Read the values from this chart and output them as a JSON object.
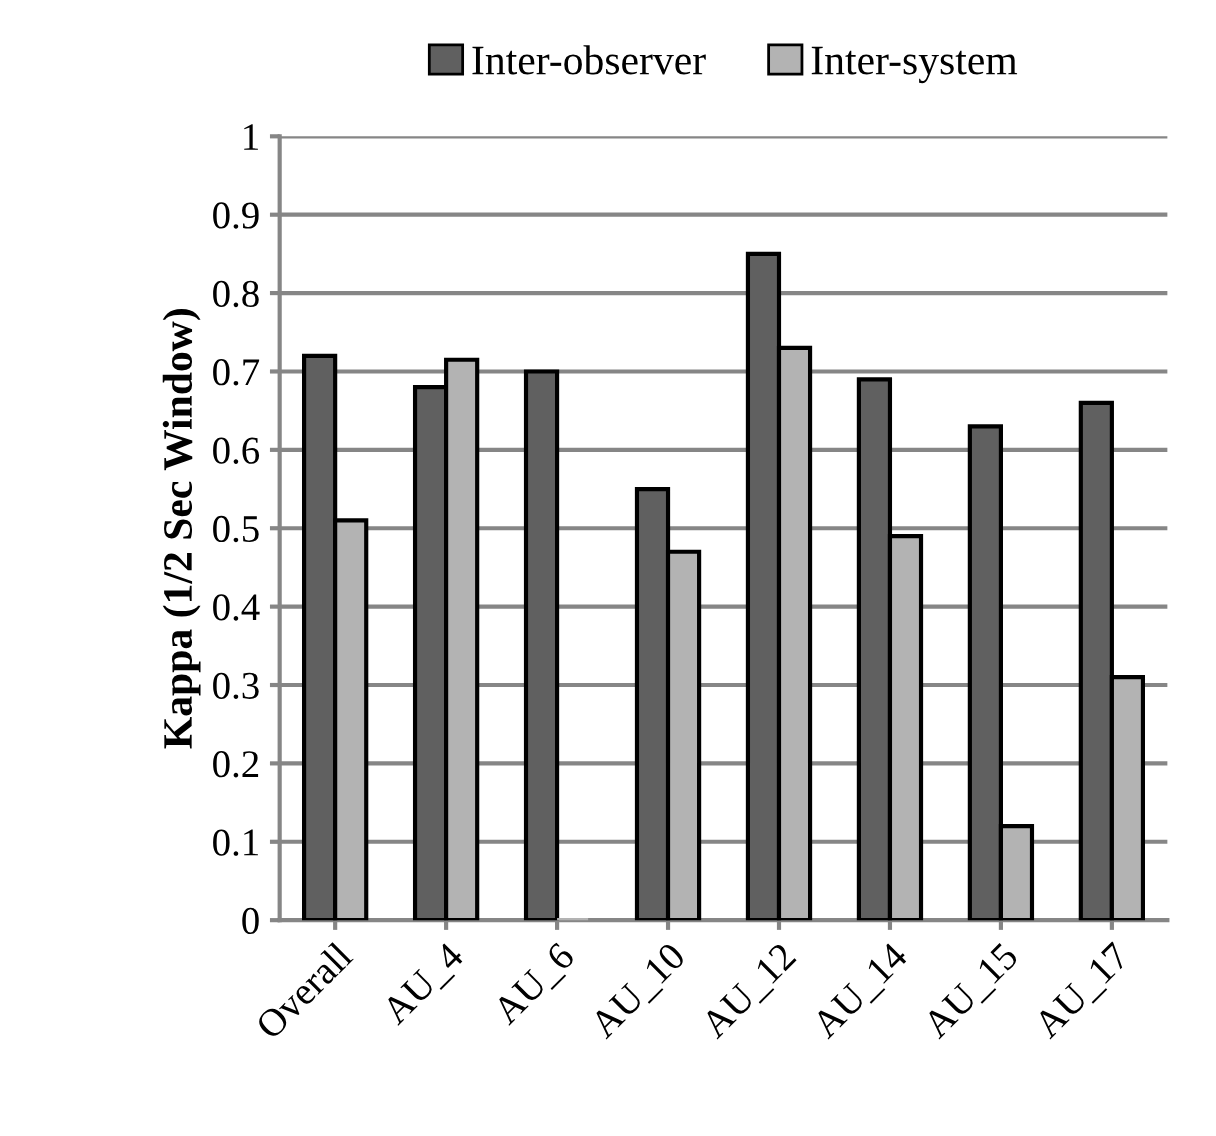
{
  "chart_data": {
    "type": "bar",
    "ylabel": "Kappa (1/2 Sec Window)",
    "categories": [
      "Overall",
      "AU_4",
      "AU_6",
      "AU_10",
      "AU_12",
      "AU_14",
      "AU_15",
      "AU_17"
    ],
    "series": [
      {
        "name": "Inter-observer",
        "color": "#606060",
        "values": [
          0.72,
          0.68,
          0.7,
          0.55,
          0.85,
          0.69,
          0.63,
          0.66
        ]
      },
      {
        "name": "Inter-system",
        "color": "#b3b3b3",
        "values": [
          0.51,
          0.715,
          0,
          0.47,
          0.73,
          0.49,
          0.12,
          0.31
        ]
      }
    ],
    "ylim": [
      0,
      1
    ],
    "yticks": [
      0,
      0.1,
      0.2,
      0.3,
      0.4,
      0.5,
      0.6,
      0.7,
      0.8,
      0.9,
      1
    ],
    "grid": "y",
    "legend": "top"
  }
}
